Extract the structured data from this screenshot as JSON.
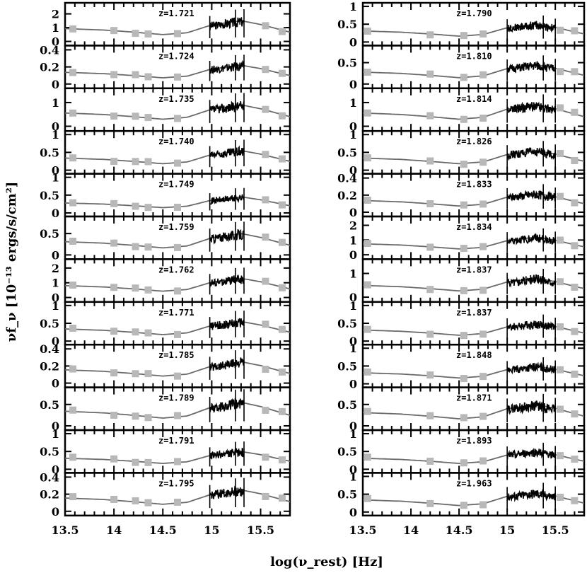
{
  "chart_data": {
    "type": "line",
    "ylabel": "νf_ν [10⁻¹³ ergs/s/cm²]",
    "xlabel": "log(ν_rest) [Hz]",
    "grid": false,
    "model_curve_color": "#6a6a6a",
    "photometry_color": "#b8b8b8",
    "spectrum_color": "#000000",
    "columns": [
      {
        "xlim": [
          13.5,
          15.8
        ],
        "x_ticks": [
          13.5,
          14,
          14.5,
          15,
          15.5
        ],
        "x_tick_labels": [
          "13.5",
          "14",
          "14.5",
          "15",
          "15.5"
        ],
        "spectrum_range": [
          14.98,
          15.33
        ],
        "photometry_x": [
          13.58,
          14.0,
          14.22,
          14.35,
          14.65,
          15.55,
          15.72
        ],
        "model_x": [
          13.5,
          13.9,
          14.2,
          14.5,
          14.75,
          15.0,
          15.3,
          15.5,
          15.8
        ],
        "model_shape": [
          0.62,
          0.55,
          0.45,
          0.33,
          0.42,
          0.8,
          1.0,
          0.82,
          0.45
        ],
        "panels": [
          {
            "z": "z=1.721",
            "ylim": [
              -0.3,
              2.8
            ],
            "y_ticks": [
              0,
              1,
              2
            ],
            "y_tick_labels": [
              "0",
              "1",
              "2"
            ],
            "scale": 1.5
          },
          {
            "z": "z=1.724",
            "ylim": [
              -0.05,
              0.45
            ],
            "y_ticks": [
              0,
              0.2,
              0.4
            ],
            "y_tick_labels": [
              "0",
              "0.2",
              "0.4"
            ],
            "scale": 0.22
          },
          {
            "z": "z=1.735",
            "ylim": [
              -0.2,
              1.6
            ],
            "y_ticks": [
              0,
              1
            ],
            "y_tick_labels": [
              "0",
              "1"
            ],
            "scale": 0.9
          },
          {
            "z": "z=1.740",
            "ylim": [
              -0.1,
              1.1
            ],
            "y_ticks": [
              0,
              0.5,
              1
            ],
            "y_tick_labels": [
              "0",
              "0.5",
              "1"
            ],
            "scale": 0.55
          },
          {
            "z": "z=1.749",
            "ylim": [
              -0.1,
              1.1
            ],
            "y_ticks": [
              0,
              0.5,
              1
            ],
            "y_tick_labels": [
              "0",
              "0.5",
              "1"
            ],
            "scale": 0.45
          },
          {
            "z": "z=1.759",
            "ylim": [
              -0.1,
              0.9
            ],
            "y_ticks": [
              0,
              0.5
            ],
            "y_tick_labels": [
              "0",
              "0.5"
            ],
            "scale": 0.5
          },
          {
            "z": "z=1.762",
            "ylim": [
              -0.3,
              2.6
            ],
            "y_ticks": [
              0,
              1,
              2
            ],
            "y_tick_labels": [
              "0",
              "1",
              "2"
            ],
            "scale": 1.3
          },
          {
            "z": "z=1.771",
            "ylim": [
              -0.1,
              1.1
            ],
            "y_ticks": [
              0,
              0.5,
              1
            ],
            "y_tick_labels": [
              "0",
              "0.5",
              "1"
            ],
            "scale": 0.55
          },
          {
            "z": "z=1.785",
            "ylim": [
              -0.05,
              0.45
            ],
            "y_ticks": [
              0,
              0.2,
              0.4
            ],
            "y_tick_labels": [
              "0",
              "0.2",
              "0.4"
            ],
            "scale": 0.25
          },
          {
            "z": "z=1.789",
            "ylim": [
              -0.1,
              0.9
            ],
            "y_ticks": [
              0,
              0.5
            ],
            "y_tick_labels": [
              "0",
              "0.5"
            ],
            "scale": 0.55
          },
          {
            "z": "z=1.791",
            "ylim": [
              -0.1,
              1.1
            ],
            "y_ticks": [
              0,
              0.5,
              1
            ],
            "y_tick_labels": [
              "0",
              "0.5",
              "1"
            ],
            "scale": 0.5
          },
          {
            "z": "z=1.795",
            "ylim": [
              -0.05,
              0.45
            ],
            "y_ticks": [
              0,
              0.2,
              0.4
            ],
            "y_tick_labels": [
              "0",
              "0.2",
              "0.4"
            ],
            "scale": 0.25
          }
        ]
      },
      {
        "xlim": [
          13.5,
          15.8
        ],
        "x_ticks": [
          13.5,
          14,
          14.5,
          15,
          15.5
        ],
        "x_tick_labels": [
          "13.5",
          "14",
          "14.5",
          "15",
          "15.5"
        ],
        "spectrum_range": [
          15.0,
          15.5
        ],
        "photometry_x": [
          13.55,
          14.2,
          14.55,
          14.75,
          15.55,
          15.7
        ],
        "model_x": [
          13.5,
          13.9,
          14.2,
          14.5,
          14.75,
          15.0,
          15.3,
          15.5,
          15.8
        ],
        "model_shape": [
          0.62,
          0.55,
          0.45,
          0.33,
          0.42,
          0.8,
          1.0,
          0.82,
          0.45
        ],
        "panels": [
          {
            "z": "z=1.790",
            "ylim": [
              -0.1,
              1.1
            ],
            "y_ticks": [
              0,
              0.5,
              1
            ],
            "y_tick_labels": [
              "0",
              "0.5",
              "1"
            ],
            "scale": 0.5
          },
          {
            "z": "z=1.810",
            "ylim": [
              -0.1,
              0.9
            ],
            "y_ticks": [
              0,
              0.5
            ],
            "y_tick_labels": [
              "0",
              "0.5"
            ],
            "scale": 0.45
          },
          {
            "z": "z=1.814",
            "ylim": [
              -0.2,
              1.6
            ],
            "y_ticks": [
              0,
              1
            ],
            "y_tick_labels": [
              "0",
              "1"
            ],
            "scale": 0.9
          },
          {
            "z": "z=1.826",
            "ylim": [
              -0.1,
              1.1
            ],
            "y_ticks": [
              0,
              0.5,
              1
            ],
            "y_tick_labels": [
              "0",
              "0.5",
              "1"
            ],
            "scale": 0.55
          },
          {
            "z": "z=1.833",
            "ylim": [
              -0.05,
              0.45
            ],
            "y_ticks": [
              0,
              0.2,
              0.4
            ],
            "y_tick_labels": [
              "0",
              "0.2",
              "0.4"
            ],
            "scale": 0.22
          },
          {
            "z": "z=1.834",
            "ylim": [
              -0.3,
              2.6
            ],
            "y_ticks": [
              0,
              1,
              2
            ],
            "y_tick_labels": [
              "0",
              "1",
              "2"
            ],
            "scale": 1.2
          },
          {
            "z": "z=1.837",
            "ylim": [
              -0.2,
              1.6
            ],
            "y_ticks": [
              0,
              1
            ],
            "y_tick_labels": [
              "0",
              "1"
            ],
            "scale": 0.8
          },
          {
            "z": "z=1.837",
            "ylim": [
              -0.1,
              1.1
            ],
            "y_ticks": [
              0,
              0.5,
              1
            ],
            "y_tick_labels": [
              "0",
              "0.5",
              "1"
            ],
            "scale": 0.5
          },
          {
            "z": "z=1.848",
            "ylim": [
              -0.1,
              1.1
            ],
            "y_ticks": [
              0,
              0.5,
              1
            ],
            "y_tick_labels": [
              "0",
              "0.5",
              "1"
            ],
            "scale": 0.5
          },
          {
            "z": "z=1.871",
            "ylim": [
              -0.1,
              0.9
            ],
            "y_ticks": [
              0,
              0.5
            ],
            "y_tick_labels": [
              "0",
              "0.5"
            ],
            "scale": 0.5
          },
          {
            "z": "z=1.893",
            "ylim": [
              -0.1,
              1.1
            ],
            "y_ticks": [
              0,
              0.5,
              1
            ],
            "y_tick_labels": [
              "0",
              "0.5",
              "1"
            ],
            "scale": 0.5
          },
          {
            "z": "z=1.963",
            "ylim": [
              -0.1,
              1.1
            ],
            "y_ticks": [
              0,
              0.5,
              1
            ],
            "y_tick_labels": [
              "0",
              "0.5",
              "1"
            ],
            "scale": 0.55
          }
        ]
      }
    ]
  }
}
